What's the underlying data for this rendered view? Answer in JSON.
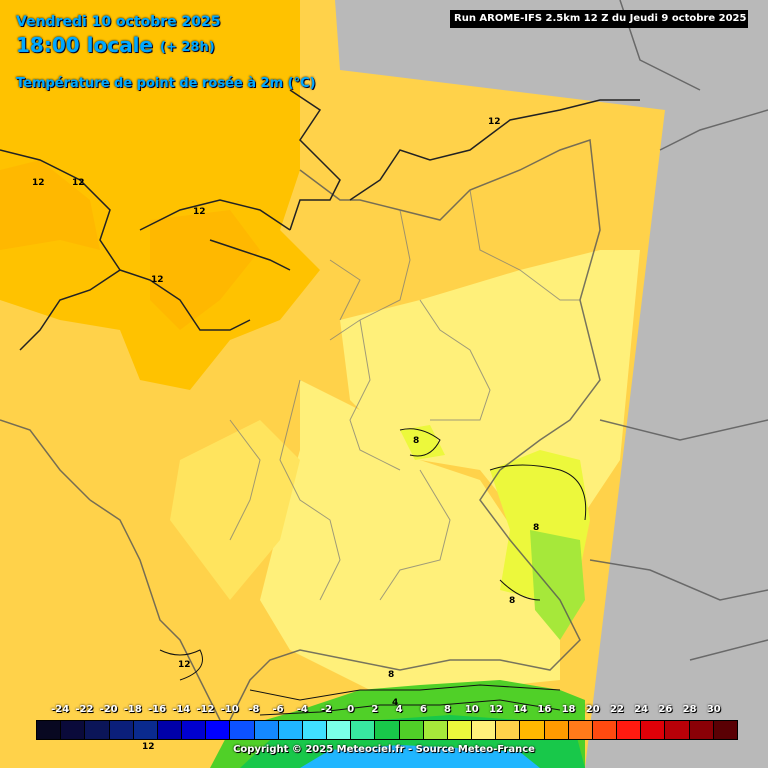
{
  "header": {
    "date": "Vendredi 10 octobre 2025",
    "time": "18:00 locale",
    "lead": "(+ 28h)",
    "parameter": "Température de point de rosée à 2m (°C)",
    "run": "Run AROME-IFS 2.5km 12 Z du Jeudi 9 octobre 2025"
  },
  "legend": {
    "ticks": [
      "-24",
      "-22",
      "-20",
      "-18",
      "-16",
      "-14",
      "-12",
      "-10",
      "-8",
      "-6",
      "-4",
      "-2",
      "0",
      "2",
      "4",
      "6",
      "8",
      "10",
      "12",
      "14",
      "16",
      "18",
      "20",
      "22",
      "24",
      "26",
      "28",
      "30"
    ],
    "colors": [
      "#080821",
      "#0a0a3a",
      "#0b1558",
      "#0b1f7a",
      "#0a2a8e",
      "#0000a8",
      "#0000d0",
      "#0000ff",
      "#0c52ff",
      "#1488ff",
      "#20b6ff",
      "#40e0ff",
      "#7affe8",
      "#38e8a0",
      "#18c84a",
      "#50d028",
      "#a6e83a",
      "#ecf83c",
      "#fff07a",
      "#ffd24a",
      "#ffb800",
      "#ff9a00",
      "#ff7a1a",
      "#ff4a10",
      "#ff1a10",
      "#e00008",
      "#b80008",
      "#8a0006",
      "#5a0004"
    ]
  },
  "contour_labels": [
    {
      "text": "12"
    },
    {
      "text": "12"
    },
    {
      "text": "12"
    },
    {
      "text": "12"
    },
    {
      "text": "12"
    },
    {
      "text": "12"
    },
    {
      "text": "8"
    },
    {
      "text": "8"
    },
    {
      "text": "8"
    },
    {
      "text": "8"
    },
    {
      "text": "4"
    },
    {
      "text": "12"
    }
  ],
  "footer": {
    "copyright": "Copyright © 2025 Meteociel.fr - Source Meteo-France"
  }
}
